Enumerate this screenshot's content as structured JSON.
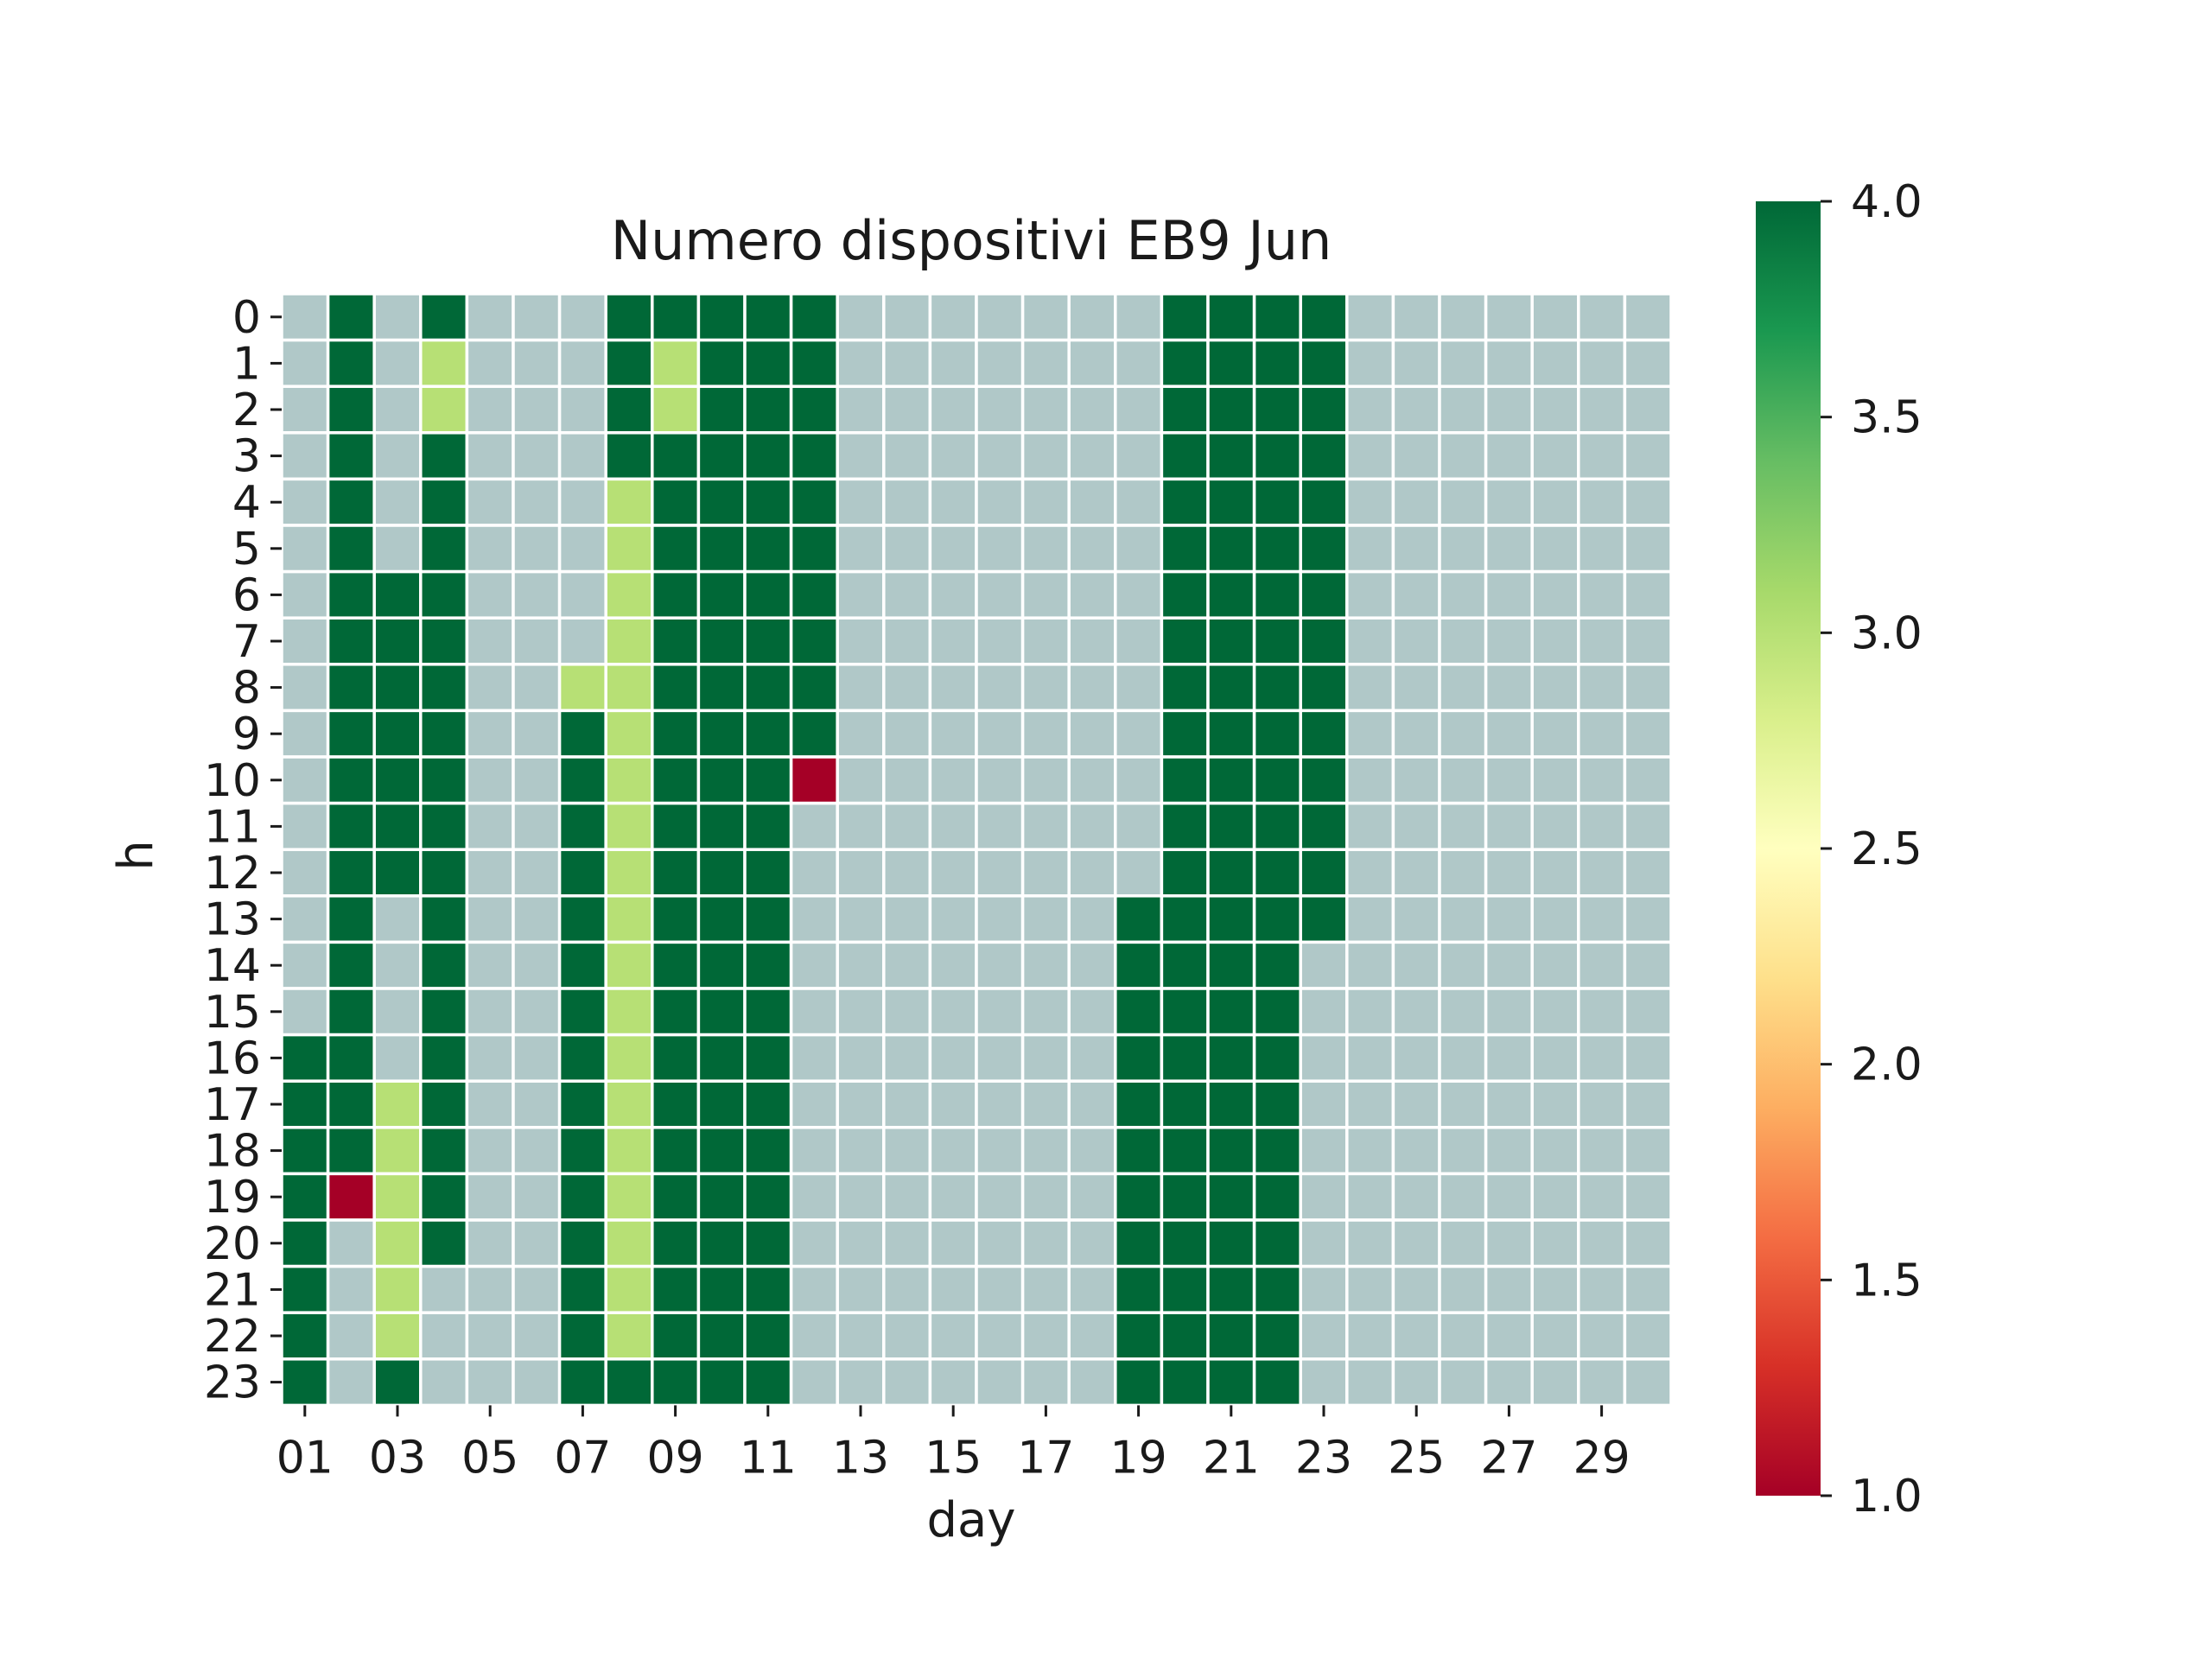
{
  "chart_data": {
    "type": "heatmap",
    "title": "Numero dispositivi EB9 Jun",
    "xlabel": "day",
    "ylabel": "h",
    "x_tick_labels": [
      "01",
      "03",
      "05",
      "07",
      "09",
      "11",
      "13",
      "15",
      "17",
      "19",
      "21",
      "23",
      "25",
      "27",
      "29"
    ],
    "days": 30,
    "hours": 24,
    "colorbar": {
      "colormap": "RdYlGn",
      "min": 1.0,
      "max": 4.0,
      "tick_labels": [
        "1.0",
        "1.5",
        "2.0",
        "2.5",
        "3.0",
        "3.5",
        "4.0"
      ]
    },
    "missing_color": "#b0c8c8",
    "gridline_color": "#ffffff",
    "note_values": "matrix[hour][day]; null = no data",
    "matrix": [
      [
        null,
        4,
        null,
        4,
        null,
        null,
        null,
        4,
        4,
        4,
        4,
        4,
        null,
        null,
        null,
        null,
        null,
        null,
        null,
        4,
        4,
        4,
        4,
        null,
        null,
        null,
        null,
        null,
        null,
        null
      ],
      [
        null,
        4,
        null,
        3,
        null,
        null,
        null,
        4,
        3,
        4,
        4,
        4,
        null,
        null,
        null,
        null,
        null,
        null,
        null,
        4,
        4,
        4,
        4,
        null,
        null,
        null,
        null,
        null,
        null,
        null
      ],
      [
        null,
        4,
        null,
        3,
        null,
        null,
        null,
        4,
        3,
        4,
        4,
        4,
        null,
        null,
        null,
        null,
        null,
        null,
        null,
        4,
        4,
        4,
        4,
        null,
        null,
        null,
        null,
        null,
        null,
        null
      ],
      [
        null,
        4,
        null,
        4,
        null,
        null,
        null,
        4,
        4,
        4,
        4,
        4,
        null,
        null,
        null,
        null,
        null,
        null,
        null,
        4,
        4,
        4,
        4,
        null,
        null,
        null,
        null,
        null,
        null,
        null
      ],
      [
        null,
        4,
        null,
        4,
        null,
        null,
        null,
        3,
        4,
        4,
        4,
        4,
        null,
        null,
        null,
        null,
        null,
        null,
        null,
        4,
        4,
        4,
        4,
        null,
        null,
        null,
        null,
        null,
        null,
        null
      ],
      [
        null,
        4,
        null,
        4,
        null,
        null,
        null,
        3,
        4,
        4,
        4,
        4,
        null,
        null,
        null,
        null,
        null,
        null,
        null,
        4,
        4,
        4,
        4,
        null,
        null,
        null,
        null,
        null,
        null,
        null
      ],
      [
        null,
        4,
        4,
        4,
        null,
        null,
        null,
        3,
        4,
        4,
        4,
        4,
        null,
        null,
        null,
        null,
        null,
        null,
        null,
        4,
        4,
        4,
        4,
        null,
        null,
        null,
        null,
        null,
        null,
        null
      ],
      [
        null,
        4,
        4,
        4,
        null,
        null,
        null,
        3,
        4,
        4,
        4,
        4,
        null,
        null,
        null,
        null,
        null,
        null,
        null,
        4,
        4,
        4,
        4,
        null,
        null,
        null,
        null,
        null,
        null,
        null
      ],
      [
        null,
        4,
        4,
        4,
        null,
        null,
        3,
        3,
        4,
        4,
        4,
        4,
        null,
        null,
        null,
        null,
        null,
        null,
        null,
        4,
        4,
        4,
        4,
        null,
        null,
        null,
        null,
        null,
        null,
        null
      ],
      [
        null,
        4,
        4,
        4,
        null,
        null,
        4,
        3,
        4,
        4,
        4,
        4,
        null,
        null,
        null,
        null,
        null,
        null,
        null,
        4,
        4,
        4,
        4,
        null,
        null,
        null,
        null,
        null,
        null,
        null
      ],
      [
        null,
        4,
        4,
        4,
        null,
        null,
        4,
        3,
        4,
        4,
        4,
        1,
        null,
        null,
        null,
        null,
        null,
        null,
        null,
        4,
        4,
        4,
        4,
        null,
        null,
        null,
        null,
        null,
        null,
        null
      ],
      [
        null,
        4,
        4,
        4,
        null,
        null,
        4,
        3,
        4,
        4,
        4,
        null,
        null,
        null,
        null,
        null,
        null,
        null,
        null,
        4,
        4,
        4,
        4,
        null,
        null,
        null,
        null,
        null,
        null,
        null
      ],
      [
        null,
        4,
        4,
        4,
        null,
        null,
        4,
        3,
        4,
        4,
        4,
        null,
        null,
        null,
        null,
        null,
        null,
        null,
        null,
        4,
        4,
        4,
        4,
        null,
        null,
        null,
        null,
        null,
        null,
        null
      ],
      [
        null,
        4,
        null,
        4,
        null,
        null,
        4,
        3,
        4,
        4,
        4,
        null,
        null,
        null,
        null,
        null,
        null,
        null,
        4,
        4,
        4,
        4,
        4,
        null,
        null,
        null,
        null,
        null,
        null,
        null
      ],
      [
        null,
        4,
        null,
        4,
        null,
        null,
        4,
        3,
        4,
        4,
        4,
        null,
        null,
        null,
        null,
        null,
        null,
        null,
        4,
        4,
        4,
        4,
        null,
        null,
        null,
        null,
        null,
        null,
        null,
        null
      ],
      [
        null,
        4,
        null,
        4,
        null,
        null,
        4,
        3,
        4,
        4,
        4,
        null,
        null,
        null,
        null,
        null,
        null,
        null,
        4,
        4,
        4,
        4,
        null,
        null,
        null,
        null,
        null,
        null,
        null,
        null
      ],
      [
        4,
        4,
        null,
        4,
        null,
        null,
        4,
        3,
        4,
        4,
        4,
        null,
        null,
        null,
        null,
        null,
        null,
        null,
        4,
        4,
        4,
        4,
        null,
        null,
        null,
        null,
        null,
        null,
        null,
        null
      ],
      [
        4,
        4,
        3,
        4,
        null,
        null,
        4,
        3,
        4,
        4,
        4,
        null,
        null,
        null,
        null,
        null,
        null,
        null,
        4,
        4,
        4,
        4,
        null,
        null,
        null,
        null,
        null,
        null,
        null,
        null
      ],
      [
        4,
        4,
        3,
        4,
        null,
        null,
        4,
        3,
        4,
        4,
        4,
        null,
        null,
        null,
        null,
        null,
        null,
        null,
        4,
        4,
        4,
        4,
        null,
        null,
        null,
        null,
        null,
        null,
        null,
        null
      ],
      [
        4,
        1,
        3,
        4,
        null,
        null,
        4,
        3,
        4,
        4,
        4,
        null,
        null,
        null,
        null,
        null,
        null,
        null,
        4,
        4,
        4,
        4,
        null,
        null,
        null,
        null,
        null,
        null,
        null,
        null
      ],
      [
        4,
        null,
        3,
        4,
        null,
        null,
        4,
        3,
        4,
        4,
        4,
        null,
        null,
        null,
        null,
        null,
        null,
        null,
        4,
        4,
        4,
        4,
        null,
        null,
        null,
        null,
        null,
        null,
        null,
        null
      ],
      [
        4,
        null,
        3,
        null,
        null,
        null,
        4,
        3,
        4,
        4,
        4,
        null,
        null,
        null,
        null,
        null,
        null,
        null,
        4,
        4,
        4,
        4,
        null,
        null,
        null,
        null,
        null,
        null,
        null,
        null
      ],
      [
        4,
        null,
        3,
        null,
        null,
        null,
        4,
        3,
        4,
        4,
        4,
        null,
        null,
        null,
        null,
        null,
        null,
        null,
        4,
        4,
        4,
        4,
        null,
        null,
        null,
        null,
        null,
        null,
        null,
        null
      ],
      [
        4,
        null,
        4,
        null,
        null,
        null,
        4,
        4,
        4,
        4,
        4,
        null,
        null,
        null,
        null,
        null,
        null,
        null,
        4,
        4,
        4,
        4,
        null,
        null,
        null,
        null,
        null,
        null,
        null,
        null
      ]
    ]
  }
}
